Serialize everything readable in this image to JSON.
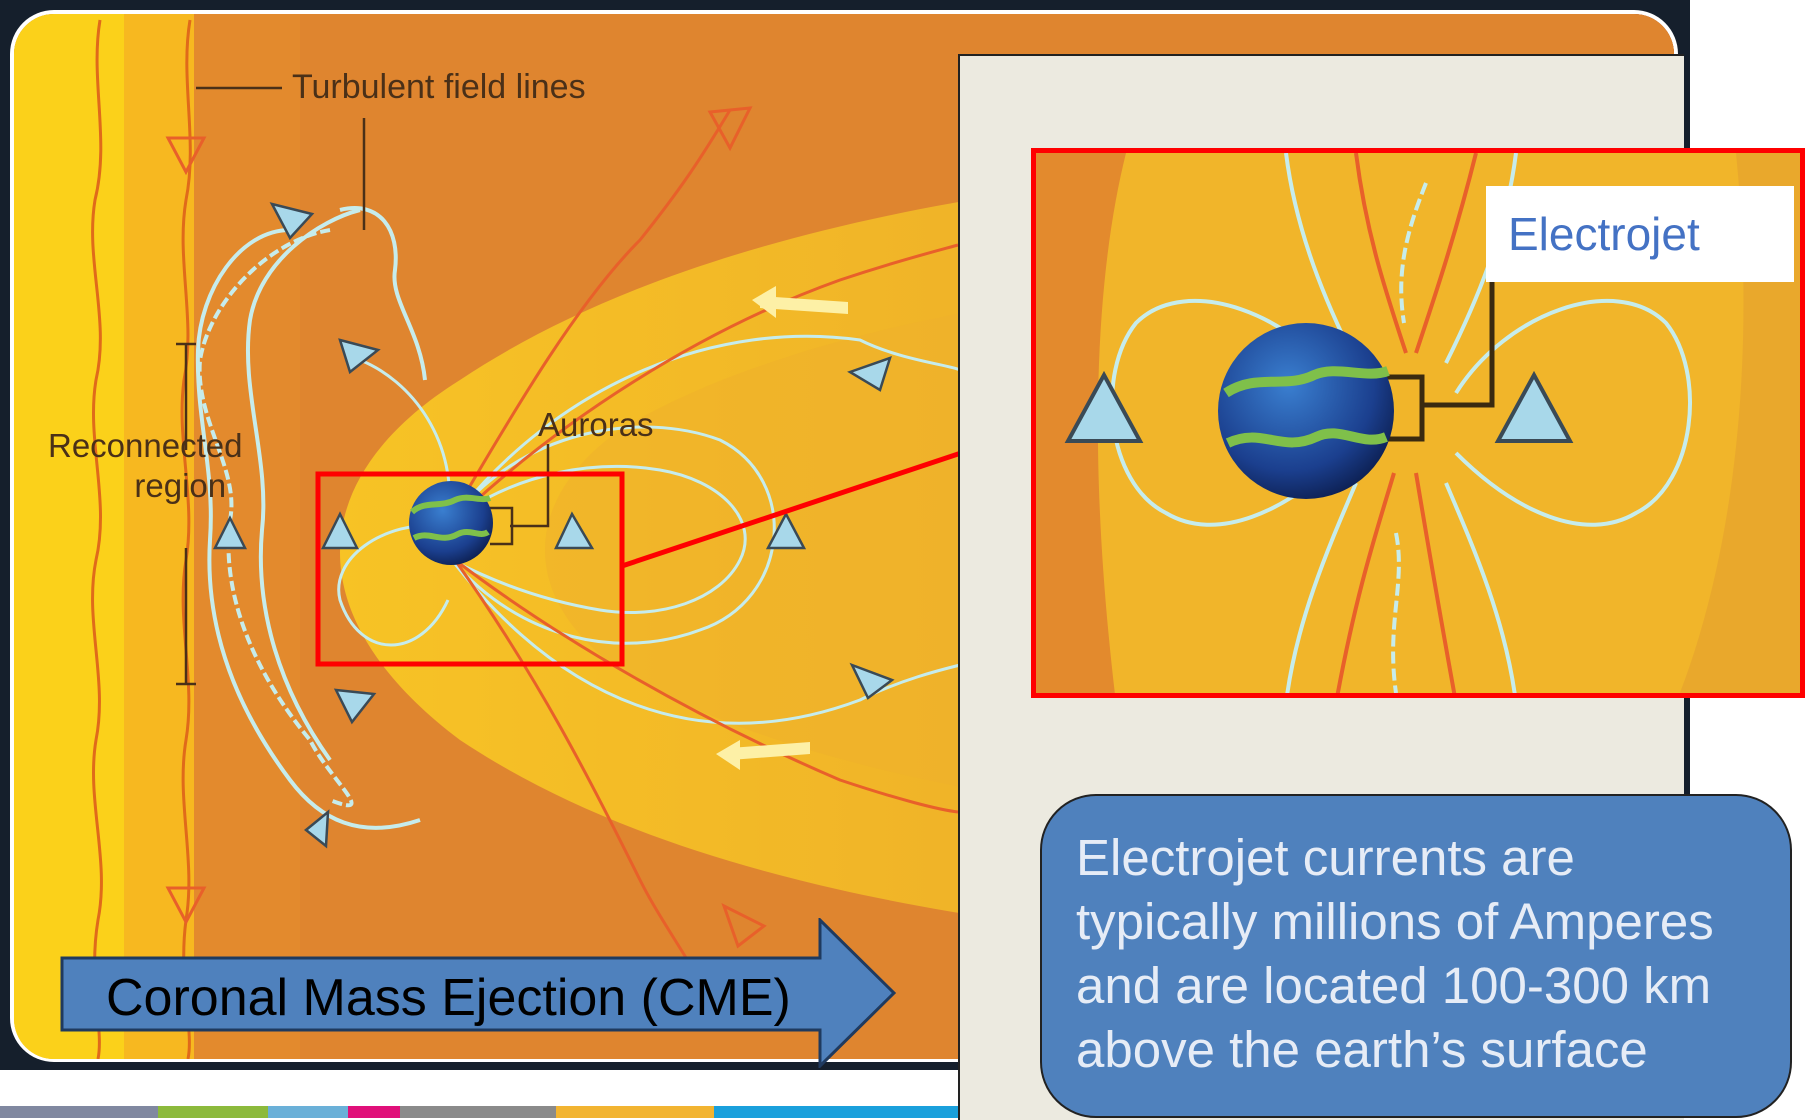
{
  "labels": {
    "turbulent": "Turbulent field lines",
    "reconnected_line1": "Reconnected",
    "reconnected_line2": "region",
    "auroras": "Auroras"
  },
  "callout": {
    "electrojet": "Electrojet"
  },
  "info_text": "Electrojet currents are typically millions of Amperes and are located 100-300 km above the earth’s surface",
  "cme_label": "Coronal Mass Ejection (CME)",
  "colors": {
    "highlight": "#ff0000",
    "arrow_fill": "#4f81bd",
    "field_line": "#c6ecec",
    "triangle_fill": "#a8d8ea",
    "panel_bg": "#eceae0",
    "strip": [
      "#8088a0",
      "#8cba3c",
      "#6ab0d8",
      "#e0107a",
      "#8a8a8a",
      "#f2b431",
      "#1aa0dc",
      "#f2b431"
    ]
  }
}
